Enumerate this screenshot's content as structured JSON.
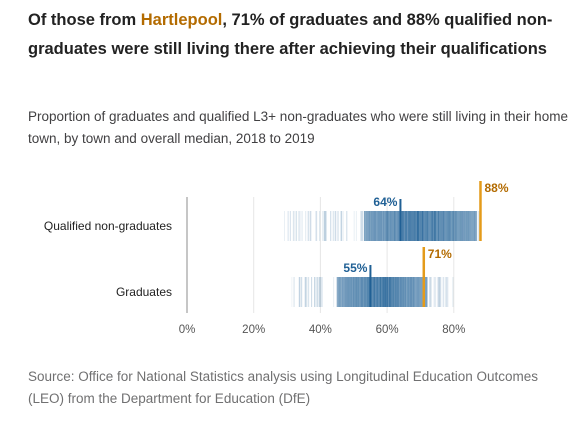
{
  "title": {
    "prefix": "Of those from ",
    "town": "Hartlepool",
    "suffix": ", 71% of graduates and 88% qualified non-graduates were still living there after achieving their qualifications"
  },
  "subtitle": "Proportion of graduates and qualified L3+ non-graduates who were still living in their home town, by town and overall median, 2018 to 2019",
  "source": "Source: Office for National Statistics analysis using Longitudinal Education Outcomes (LEO) from the Department for Education (DfE)",
  "colors": {
    "distribution": "#206095",
    "median": "#206095",
    "highlight": "#e49b1a",
    "highlight_text": "#b36b00",
    "gridline": "#e6e6e6",
    "axis": "#b3b3b3"
  },
  "chart_data": {
    "type": "strip",
    "xlim": [
      0,
      100
    ],
    "x_ticks": [
      0,
      20,
      40,
      60,
      80
    ],
    "x_tick_labels": [
      "0%",
      "20%",
      "40%",
      "60%",
      "80%"
    ],
    "grid": true,
    "series": [
      {
        "name": "Qualified non-graduates",
        "median": 64,
        "median_label": "64%",
        "highlight": 88,
        "highlight_label": "88%",
        "range": [
          29,
          88
        ],
        "dense_range": [
          53,
          87
        ]
      },
      {
        "name": "Graduates",
        "median": 55,
        "median_label": "55%",
        "highlight": 71,
        "highlight_label": "71%",
        "range": [
          31,
          80
        ],
        "dense_range": [
          45,
          72
        ]
      }
    ]
  }
}
